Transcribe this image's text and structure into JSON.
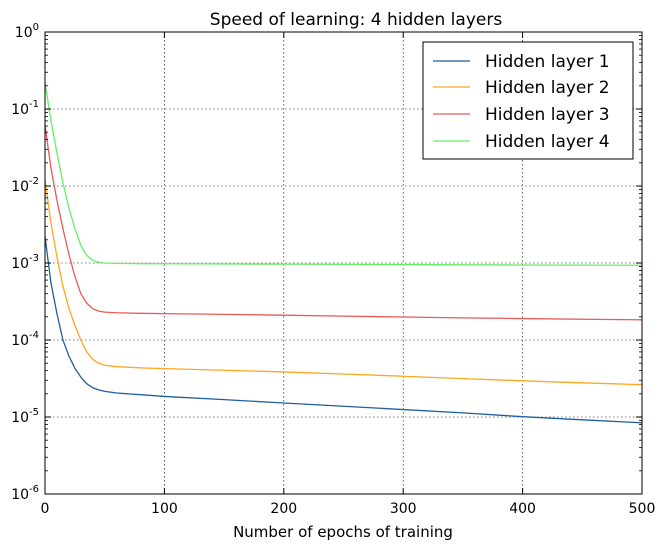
{
  "chart_data": {
    "type": "line",
    "title": "Speed of learning: 4 hidden layers",
    "xlabel": "Number of epochs of training",
    "ylabel": "",
    "yscale": "log",
    "xlim": [
      0,
      500
    ],
    "ylim": [
      1e-06,
      1
    ],
    "grid": true,
    "legend_position": "top-right",
    "x_ticks": [
      "0",
      "100",
      "200",
      "300",
      "400",
      "500"
    ],
    "y_ticks": [
      {
        "base": "10",
        "exp": "0"
      },
      {
        "base": "10",
        "exp": "-1"
      },
      {
        "base": "10",
        "exp": "-2"
      },
      {
        "base": "10",
        "exp": "-3"
      },
      {
        "base": "10",
        "exp": "-4"
      },
      {
        "base": "10",
        "exp": "-5"
      },
      {
        "base": "10",
        "exp": "-6"
      }
    ],
    "series": [
      {
        "name": "Hidden layer 1",
        "color": "#1f5fa0",
        "x": [
          0,
          5,
          10,
          15,
          20,
          25,
          30,
          35,
          40,
          45,
          50,
          60,
          80,
          100,
          150,
          200,
          250,
          300,
          350,
          400,
          450,
          500
        ],
        "y": [
          0.0022,
          0.00055,
          0.00022,
          0.0001,
          6.2e-05,
          4.3e-05,
          3.3e-05,
          2.7e-05,
          2.4e-05,
          2.25e-05,
          2.15e-05,
          2.05e-05,
          1.95e-05,
          1.85e-05,
          1.68e-05,
          1.52e-05,
          1.38e-05,
          1.25e-05,
          1.13e-05,
          1.01e-05,
          9.2e-06,
          8.4e-06
        ]
      },
      {
        "name": "Hidden layer 2",
        "color": "#ffa520",
        "x": [
          0,
          5,
          10,
          15,
          20,
          25,
          30,
          35,
          40,
          45,
          50,
          60,
          80,
          100,
          150,
          200,
          250,
          300,
          350,
          400,
          450,
          500
        ],
        "y": [
          0.012,
          0.0033,
          0.0012,
          0.0005,
          0.00026,
          0.000155,
          0.0001,
          7e-05,
          5.6e-05,
          5e-05,
          4.7e-05,
          4.5e-05,
          4.35e-05,
          4.25e-05,
          4.05e-05,
          3.85e-05,
          3.62e-05,
          3.38e-05,
          3.15e-05,
          2.95e-05,
          2.78e-05,
          2.63e-05
        ]
      },
      {
        "name": "Hidden layer 3",
        "color": "#e85a5a",
        "x": [
          0,
          5,
          10,
          15,
          20,
          25,
          30,
          35,
          40,
          45,
          50,
          60,
          80,
          100,
          150,
          200,
          250,
          300,
          350,
          400,
          450,
          500
        ],
        "y": [
          0.062,
          0.017,
          0.0065,
          0.0028,
          0.0013,
          0.00067,
          0.0004,
          0.0003,
          0.000255,
          0.000237,
          0.00023,
          0.000226,
          0.000222,
          0.00022,
          0.000215,
          0.00021,
          0.000204,
          0.000199,
          0.000194,
          0.00019,
          0.000186,
          0.000183
        ]
      },
      {
        "name": "Hidden layer 4",
        "color": "#66ee66",
        "x": [
          0,
          5,
          10,
          15,
          20,
          25,
          30,
          35,
          40,
          45,
          50,
          60,
          80,
          100,
          150,
          200,
          250,
          300,
          350,
          400,
          450,
          500
        ],
        "y": [
          0.22,
          0.07,
          0.027,
          0.011,
          0.0052,
          0.0028,
          0.0017,
          0.00125,
          0.00108,
          0.00102,
          0.001,
          0.00099,
          0.00098,
          0.000978,
          0.000972,
          0.000966,
          0.00096,
          0.000954,
          0.000948,
          0.000942,
          0.000938,
          0.000935
        ]
      }
    ]
  }
}
